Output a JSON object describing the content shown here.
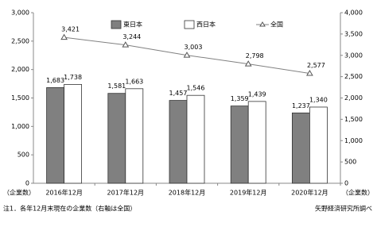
{
  "chart_data": {
    "type": "bar-line",
    "categories": [
      "2016年12月",
      "2017年12月",
      "2018年12月",
      "2019年12月",
      "2020年12月"
    ],
    "series": [
      {
        "name": "東日本",
        "color": "#808080",
        "values": [
          1683,
          1581,
          1457,
          1359,
          1237
        ],
        "value_labels": [
          "1,683",
          "1,581",
          "1,457",
          "1,359",
          "1,237"
        ]
      },
      {
        "name": "西日本",
        "color": "#ffffff",
        "values": [
          1738,
          1663,
          1546,
          1439,
          1340
        ],
        "value_labels": [
          "1,738",
          "1,663",
          "1,546",
          "1,439",
          "1,340"
        ]
      },
      {
        "name": "全国",
        "color": "#808080",
        "axis": "y2",
        "values": [
          3421,
          3244,
          3003,
          2798,
          2577
        ],
        "value_labels": [
          "3,421",
          "3,244",
          "3,003",
          "2,798",
          "2,577"
        ]
      }
    ],
    "ylim": [
      0,
      3000
    ],
    "yticks": [
      0,
      500,
      {
        "value": 1000,
        "label": "1,000"
      },
      {
        "value": 1500,
        "label": "1,500"
      },
      {
        "value": 2000,
        "label": "2,000"
      },
      {
        "value": 2500,
        "label": "2,500"
      },
      {
        "value": 3000,
        "label": "3,000"
      }
    ],
    "y2lim": [
      0,
      4000
    ],
    "y2ticks": [
      0,
      500,
      {
        "value": 1000,
        "label": "1,000"
      },
      {
        "value": 1500,
        "label": "1,500"
      },
      {
        "value": 2000,
        "label": "2,000"
      },
      {
        "value": 2500,
        "label": "2,500"
      },
      {
        "value": 3000,
        "label": "3,000"
      },
      {
        "value": 3500,
        "label": "3,500"
      },
      {
        "value": 4000,
        "label": "4,000"
      }
    ],
    "ylabel": "（企業数）",
    "y2label": "（企業数）",
    "note": "注1．各年12月末現在の企業数（右軸は全国）",
    "source": "矢野経済研究所調べ"
  }
}
